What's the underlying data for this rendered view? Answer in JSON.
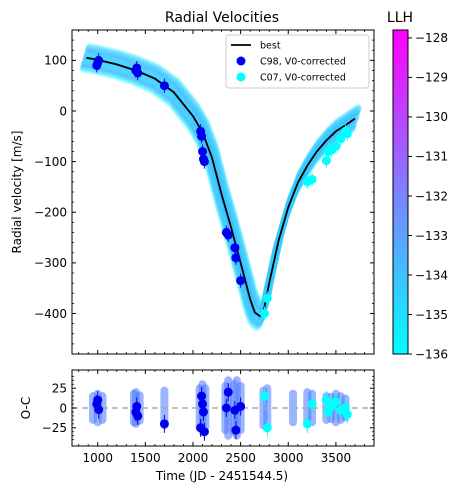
{
  "chart_data": [
    {
      "type": "line",
      "title": "Radial Velocities",
      "xlabel": "",
      "ylabel": "Radial velocity [m/s]",
      "xlim": [
        730,
        3900
      ],
      "ylim": [
        -480,
        160
      ],
      "xticks": [
        1000,
        1500,
        2000,
        2500,
        3000,
        3500
      ],
      "yticks": [
        100,
        0,
        -100,
        -200,
        -300,
        -400
      ],
      "ytick_labels": [
        "100",
        "0",
        "−100",
        "−200",
        "−300",
        "−400"
      ],
      "legend": {
        "placement": "top-right",
        "entries": [
          "best",
          "C98, V0-corrected",
          "C07, V0-corrected"
        ]
      },
      "series": [
        {
          "name": "best",
          "x": [
            880,
            1000,
            1200,
            1400,
            1600,
            1800,
            2000,
            2100,
            2200,
            2300,
            2400,
            2500,
            2600,
            2650,
            2700,
            2720,
            2750,
            2800,
            2900,
            3000,
            3100,
            3200,
            3300,
            3400,
            3500,
            3600,
            3700
          ],
          "y": [
            105,
            101,
            92,
            80,
            64,
            37,
            -10,
            -42,
            -92,
            -165,
            -230,
            -300,
            -372,
            -398,
            -405,
            -403,
            -388,
            -340,
            -255,
            -190,
            -142,
            -108,
            -80,
            -58,
            -40,
            -28,
            -15
          ]
        },
        {
          "name": "C98, V0-corrected",
          "x": [
            990,
            1000,
            1010,
            1400,
            1410,
            1420,
            1700,
            2080,
            2090,
            2100,
            2110,
            2120,
            2350,
            2370,
            2440,
            2450,
            2500
          ],
          "y": [
            90,
            95,
            100,
            80,
            85,
            75,
            50,
            -40,
            -50,
            -80,
            -95,
            -100,
            -240,
            -245,
            -270,
            -290,
            -335
          ]
        },
        {
          "name": "C07, V0-corrected",
          "x": [
            2750,
            2780,
            3200,
            3250,
            3400,
            3420,
            3450,
            3500,
            3550,
            3600,
            3620
          ],
          "y": [
            -400,
            -370,
            -140,
            -135,
            -98,
            -80,
            -78,
            -70,
            -55,
            -40,
            -45
          ]
        }
      ],
      "model_band_color_range": [
        "#00ffff",
        "#6f8fff"
      ]
    },
    {
      "type": "scatter",
      "title": "",
      "xlabel": "Time (JD - 2451544.5)",
      "ylabel": "O-C",
      "xlim": [
        730,
        3900
      ],
      "ylim": [
        -48,
        48
      ],
      "xticks": [
        1000,
        1500,
        2000,
        2500,
        3000,
        3500
      ],
      "yticks": [
        25,
        0,
        -25
      ],
      "ytick_labels": [
        "25",
        "0",
        "−25"
      ],
      "zero_line": 0,
      "series": [
        {
          "name": "C98, V0-corrected",
          "x": [
            990,
            1000,
            1010,
            1400,
            1410,
            1420,
            1700,
            2080,
            2090,
            2100,
            2110,
            2120,
            2350,
            2370,
            2440,
            2450,
            2500
          ],
          "y": [
            5,
            10,
            -2,
            -5,
            2,
            -10,
            -20,
            -25,
            15,
            5,
            -5,
            -30,
            0,
            20,
            -3,
            -28,
            2
          ]
        },
        {
          "name": "C07, V0-corrected",
          "x": [
            2750,
            2780,
            3200,
            3250,
            3400,
            3420,
            3450,
            3500,
            3550,
            3600,
            3620
          ],
          "y": [
            15,
            -25,
            -20,
            5,
            10,
            -5,
            2,
            8,
            -3,
            0,
            -8
          ]
        }
      ],
      "residual_spread_x": [
        950,
        1000,
        1050,
        1380,
        1400,
        1440,
        1700,
        2070,
        2100,
        2130,
        2340,
        2370,
        2430,
        2460,
        2500,
        2740,
        2780,
        3050,
        3200,
        3250,
        3400,
        3450,
        3500,
        3550,
        3600
      ],
      "residual_spread_halfwidth": [
        15,
        18,
        15,
        18,
        20,
        16,
        22,
        25,
        30,
        25,
        28,
        35,
        30,
        35,
        28,
        22,
        25,
        18,
        20,
        18,
        15,
        14,
        18,
        15,
        12
      ]
    },
    {
      "type": "heatmap",
      "title": "LLH",
      "colormap": [
        "#00ffff",
        "#ff00ff"
      ],
      "range": [
        -136,
        -127.8
      ],
      "ticks": [
        -128,
        -129,
        -130,
        -131,
        -132,
        -133,
        -134,
        -135,
        -136
      ],
      "tick_labels": [
        "−128",
        "−129",
        "−130",
        "−131",
        "−132",
        "−133",
        "−134",
        "−135",
        "−136"
      ]
    }
  ],
  "colors": {
    "best_line": "#000000",
    "c98": "#0000ee",
    "c07": "#00ffff",
    "zero_line": "#aaaaaa",
    "cmap_low": "#00ffff",
    "cmap_high": "#ff00ff"
  }
}
